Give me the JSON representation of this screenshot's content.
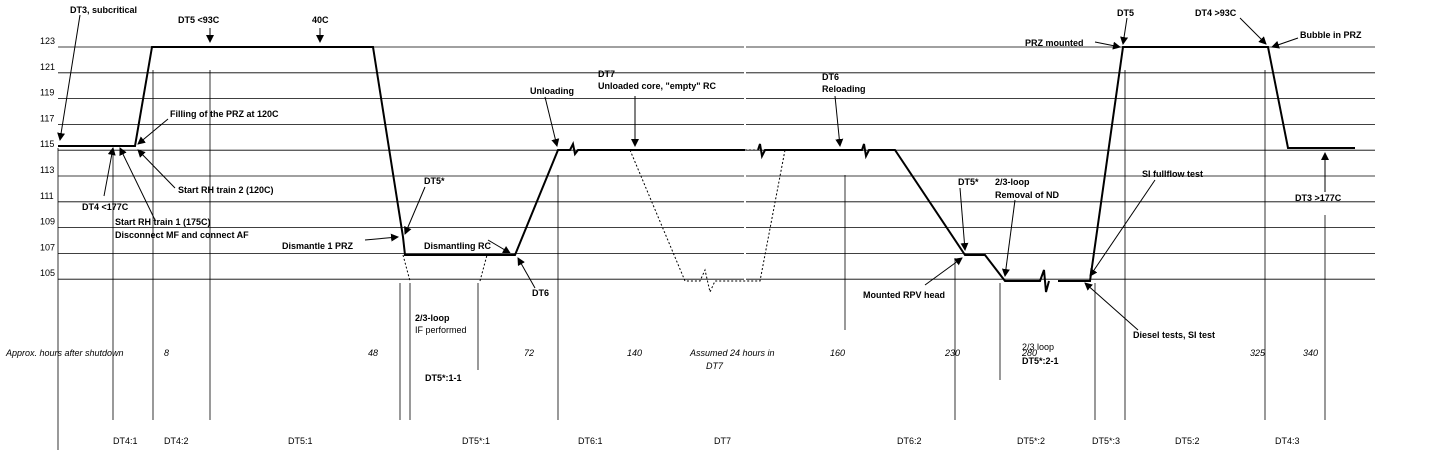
{
  "levels": [
    "123",
    "121",
    "119",
    "117",
    "115",
    "113",
    "111",
    "109",
    "107",
    "105"
  ],
  "annotations": [
    "DT3, subcritical",
    "DT5 <93C",
    "40C",
    "DT5",
    "DT4 >93C",
    "Bubble in PRZ",
    "PRZ mounted",
    "DT7",
    "Unloaded core, \"empty\" RC",
    "DT6",
    "Reloading",
    "Unloading",
    "Filling of the PRZ at 120C",
    "DT5*",
    "Start RH train 2 (120C)",
    "DT4 <177C",
    "Start RH train 1 (175C)",
    "Disconnect MF and connect AF",
    "Dismantle 1 PRZ",
    "Dismantling RC",
    "DT6",
    "DT5*",
    "2/3-loop",
    "Removal of ND",
    "SI fullflow test",
    "DT3 >177C",
    "Mounted RPV head",
    "Diesel tests, SI test",
    "2/3-loop",
    "IF performed",
    "DT5*:1-1",
    "2/3 loop",
    "DT5*:2-1"
  ],
  "hour_axis_title": "Approx. hours after shutdown",
  "hours": [
    "8",
    "48",
    "72",
    "140",
    "Assumed 24 hours in",
    "DT7",
    "160",
    "230",
    "280",
    "325",
    "340"
  ],
  "states": [
    "DT4:1",
    "DT4:2",
    "DT5:1",
    "DT5*:1",
    "DT6:1",
    "DT7",
    "DT6:2",
    "DT5*:2",
    "DT5*:3",
    "DT5:2",
    "DT4:3"
  ]
}
